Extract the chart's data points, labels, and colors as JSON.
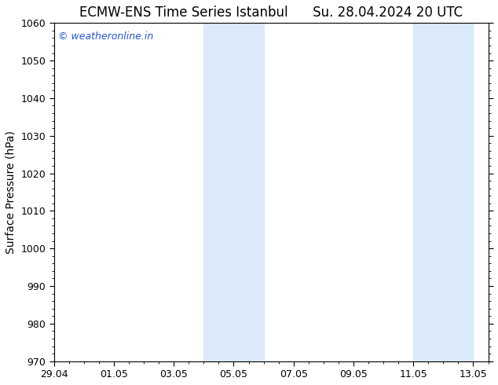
{
  "title": "ECMW-ENS Time Series Istanbul      Su. 28.04.2024 20 UTC",
  "ylabel": "Surface Pressure (hPa)",
  "ylim": [
    970,
    1060
  ],
  "yticks": [
    970,
    980,
    990,
    1000,
    1010,
    1020,
    1030,
    1040,
    1050,
    1060
  ],
  "x_labels": [
    "29.04",
    "01.05",
    "03.05",
    "05.05",
    "07.05",
    "09.05",
    "11.05",
    "13.05"
  ],
  "x_positions": [
    0,
    2,
    4,
    6,
    8,
    10,
    12,
    14
  ],
  "x_min": 0,
  "x_max": 14.5,
  "shaded_bands": [
    {
      "x_start": 5.0,
      "x_end": 7.0
    },
    {
      "x_start": 12.0,
      "x_end": 14.0
    }
  ],
  "shade_color": "#daeaf8",
  "background_color": "#ffffff",
  "plot_bg_color": "#ffffff",
  "watermark_text": "© weatheronline.in",
  "watermark_color": "#2255cc",
  "title_color": "#000000",
  "title_fontsize": 12,
  "ylabel_fontsize": 10,
  "tick_fontsize": 9
}
